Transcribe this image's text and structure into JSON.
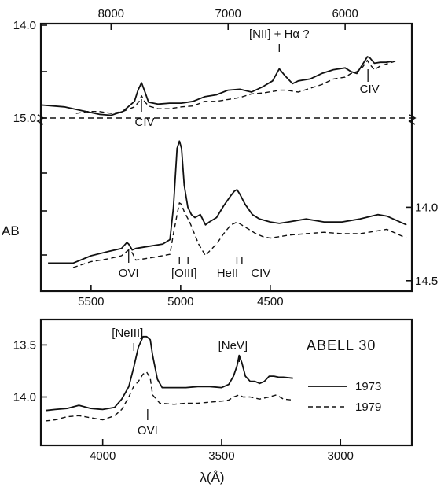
{
  "chart_data": [
    {
      "type": "line",
      "panel": "upper",
      "xlabel": "",
      "x_axis_top": {
        "ticks": [
          8000,
          7000,
          6000
        ],
        "lim": [
          8600,
          5430
        ]
      },
      "ylabel": "AB",
      "y_axis_left": {
        "ticks": [
          "14.0",
          "15.0"
        ],
        "lim": [
          14.0,
          15.0
        ],
        "inverted": true
      },
      "reference_line": {
        "y": 15.0,
        "style": "dashed"
      },
      "annotations": [
        {
          "text": "[NII] + Hα ?",
          "x": 6563
        },
        {
          "text": "CIV",
          "x": 7740
        },
        {
          "text": "CIV",
          "x": 5805
        }
      ],
      "series": [
        {
          "name": "1973",
          "style": "solid",
          "x": [
            8590,
            8400,
            8250,
            8100,
            8000,
            7900,
            7800,
            7770,
            7740,
            7710,
            7680,
            7600,
            7500,
            7400,
            7300,
            7200,
            7100,
            7000,
            6900,
            6800,
            6700,
            6620,
            6563,
            6510,
            6450,
            6400,
            6300,
            6200,
            6100,
            6000,
            5950,
            5900,
            5850,
            5810,
            5790,
            5750,
            5700,
            5650,
            5600
          ],
          "y": [
            14.86,
            14.88,
            14.92,
            14.96,
            14.97,
            14.93,
            14.82,
            14.7,
            14.62,
            14.72,
            14.83,
            14.85,
            14.84,
            14.84,
            14.82,
            14.77,
            14.75,
            14.7,
            14.69,
            14.72,
            14.66,
            14.6,
            14.47,
            14.55,
            14.63,
            14.6,
            14.58,
            14.52,
            14.48,
            14.46,
            14.5,
            14.52,
            14.42,
            14.34,
            14.35,
            14.41,
            14.4,
            14.4,
            14.39
          ]
        },
        {
          "name": "1979",
          "style": "dashed",
          "x": [
            8300,
            8200,
            8100,
            8000,
            7900,
            7800,
            7760,
            7740,
            7715,
            7680,
            7600,
            7500,
            7400,
            7300,
            7200,
            7100,
            7000,
            6900,
            6800,
            6700,
            6600,
            6563,
            6500,
            6400,
            6300,
            6200,
            6100,
            6000,
            5950,
            5900,
            5850,
            5810,
            5790,
            5750,
            5700,
            5650,
            5550
          ],
          "y": [
            14.95,
            14.93,
            14.93,
            14.95,
            14.93,
            14.88,
            14.82,
            14.76,
            14.82,
            14.87,
            14.9,
            14.9,
            14.88,
            14.87,
            14.82,
            14.82,
            14.8,
            14.78,
            14.74,
            14.73,
            14.71,
            14.7,
            14.7,
            14.72,
            14.68,
            14.64,
            14.58,
            14.56,
            14.52,
            14.5,
            14.45,
            14.38,
            14.42,
            14.48,
            14.44,
            14.42,
            14.38
          ]
        }
      ]
    },
    {
      "type": "line",
      "panel": "middle",
      "xlabel": "",
      "x_axis_bottom": {
        "ticks": [
          5500,
          5000,
          4500
        ],
        "lim": [
          5780,
          3710
        ]
      },
      "ylabel": "AB",
      "y_axis_right": {
        "ticks": [
          "14.0",
          "14.5"
        ],
        "lim": [
          13.5,
          14.56
        ],
        "inverted": true
      },
      "annotations": [
        {
          "text": "OVI",
          "x": 5290
        },
        {
          "text": "[OIII]",
          "x": 5007
        },
        {
          "text": "HeII",
          "x": 4686
        },
        {
          "text": "CIV",
          "x": 4658
        }
      ],
      "series": [
        {
          "name": "1973",
          "style": "solid",
          "x": [
            5740,
            5600,
            5500,
            5400,
            5330,
            5300,
            5290,
            5270,
            5250,
            5200,
            5100,
            5060,
            5040,
            5020,
            5007,
            4995,
            4980,
            4960,
            4940,
            4920,
            4890,
            4861,
            4840,
            4800,
            4760,
            4720,
            4700,
            4686,
            4670,
            4640,
            4600,
            4560,
            4500,
            4450,
            4400,
            4300,
            4200,
            4100,
            4000,
            3900,
            3850,
            3740
          ],
          "y": [
            14.38,
            14.38,
            14.33,
            14.3,
            14.28,
            14.24,
            14.25,
            14.29,
            14.28,
            14.27,
            14.25,
            14.22,
            14.0,
            13.6,
            13.55,
            13.6,
            13.85,
            14.0,
            14.05,
            14.07,
            14.05,
            14.12,
            14.1,
            14.07,
            13.99,
            13.92,
            13.89,
            13.88,
            13.91,
            13.98,
            14.05,
            14.08,
            14.1,
            14.11,
            14.1,
            14.08,
            14.1,
            14.1,
            14.08,
            14.05,
            14.06,
            14.12
          ]
        },
        {
          "name": "1979",
          "style": "dashed",
          "x": [
            5600,
            5500,
            5400,
            5330,
            5290,
            5270,
            5250,
            5150,
            5060,
            5040,
            5020,
            5007,
            4995,
            4980,
            4950,
            4900,
            4861,
            4840,
            4800,
            4760,
            4720,
            4700,
            4686,
            4660,
            4620,
            4580,
            4540,
            4500,
            4400,
            4300,
            4200,
            4100,
            4000,
            3900,
            3850,
            3740
          ],
          "y": [
            14.41,
            14.37,
            14.35,
            14.33,
            14.29,
            14.31,
            14.36,
            14.34,
            14.32,
            14.18,
            14.05,
            13.97,
            13.98,
            14.03,
            14.1,
            14.25,
            14.33,
            14.3,
            14.25,
            14.18,
            14.12,
            14.11,
            14.1,
            14.12,
            14.15,
            14.18,
            14.2,
            14.21,
            14.19,
            14.18,
            14.17,
            14.18,
            14.18,
            14.16,
            14.15,
            14.21
          ]
        }
      ]
    },
    {
      "type": "line",
      "panel": "lower",
      "title": "ABELL 30",
      "xlabel": "λ(Å)",
      "x_axis_bottom": {
        "ticks": [
          4000,
          3500,
          3000
        ],
        "lim": [
          4260,
          2700
        ]
      },
      "ylabel": "",
      "y_axis_left": {
        "ticks": [
          "13.5",
          "14.0"
        ],
        "lim": [
          13.27,
          14.45
        ],
        "inverted": true
      },
      "annotations": [
        {
          "text": "[NeIII]",
          "x": 3869
        },
        {
          "text": "[NeV]",
          "x": 3426
        },
        {
          "text": "OVI",
          "x": 3811
        }
      ],
      "legend": {
        "position": "right",
        "entries": [
          "1973",
          "1979"
        ]
      },
      "series": [
        {
          "name": "1973",
          "style": "solid",
          "x": [
            4240,
            4200,
            4150,
            4100,
            4050,
            4000,
            3950,
            3920,
            3890,
            3870,
            3850,
            3830,
            3815,
            3800,
            3790,
            3770,
            3750,
            3700,
            3650,
            3600,
            3550,
            3500,
            3470,
            3450,
            3435,
            3426,
            3415,
            3400,
            3380,
            3360,
            3340,
            3320,
            3300,
            3280,
            3260,
            3240,
            3200
          ],
          "y": [
            14.13,
            14.12,
            14.11,
            14.08,
            14.11,
            14.12,
            14.1,
            14.02,
            13.9,
            13.72,
            13.52,
            13.42,
            13.42,
            13.45,
            13.6,
            13.83,
            13.91,
            13.91,
            13.91,
            13.9,
            13.9,
            13.91,
            13.88,
            13.8,
            13.7,
            13.6,
            13.67,
            13.8,
            13.85,
            13.85,
            13.87,
            13.85,
            13.8,
            13.8,
            13.81,
            13.81,
            13.82
          ]
        },
        {
          "name": "1979",
          "style": "dashed",
          "x": [
            4240,
            4200,
            4150,
            4100,
            4050,
            4000,
            3950,
            3920,
            3890,
            3870,
            3850,
            3830,
            3815,
            3800,
            3790,
            3760,
            3700,
            3650,
            3600,
            3550,
            3500,
            3470,
            3450,
            3426,
            3410,
            3380,
            3340,
            3300,
            3270,
            3240,
            3200
          ],
          "y": [
            14.23,
            14.22,
            14.19,
            14.18,
            14.2,
            14.22,
            14.18,
            14.12,
            14.0,
            13.9,
            13.85,
            13.78,
            13.76,
            13.82,
            13.98,
            14.06,
            14.07,
            14.06,
            14.06,
            14.05,
            14.04,
            14.03,
            14.0,
            13.98,
            14.0,
            14.0,
            14.02,
            14.0,
            13.98,
            14.02,
            14.03
          ]
        }
      ]
    }
  ]
}
